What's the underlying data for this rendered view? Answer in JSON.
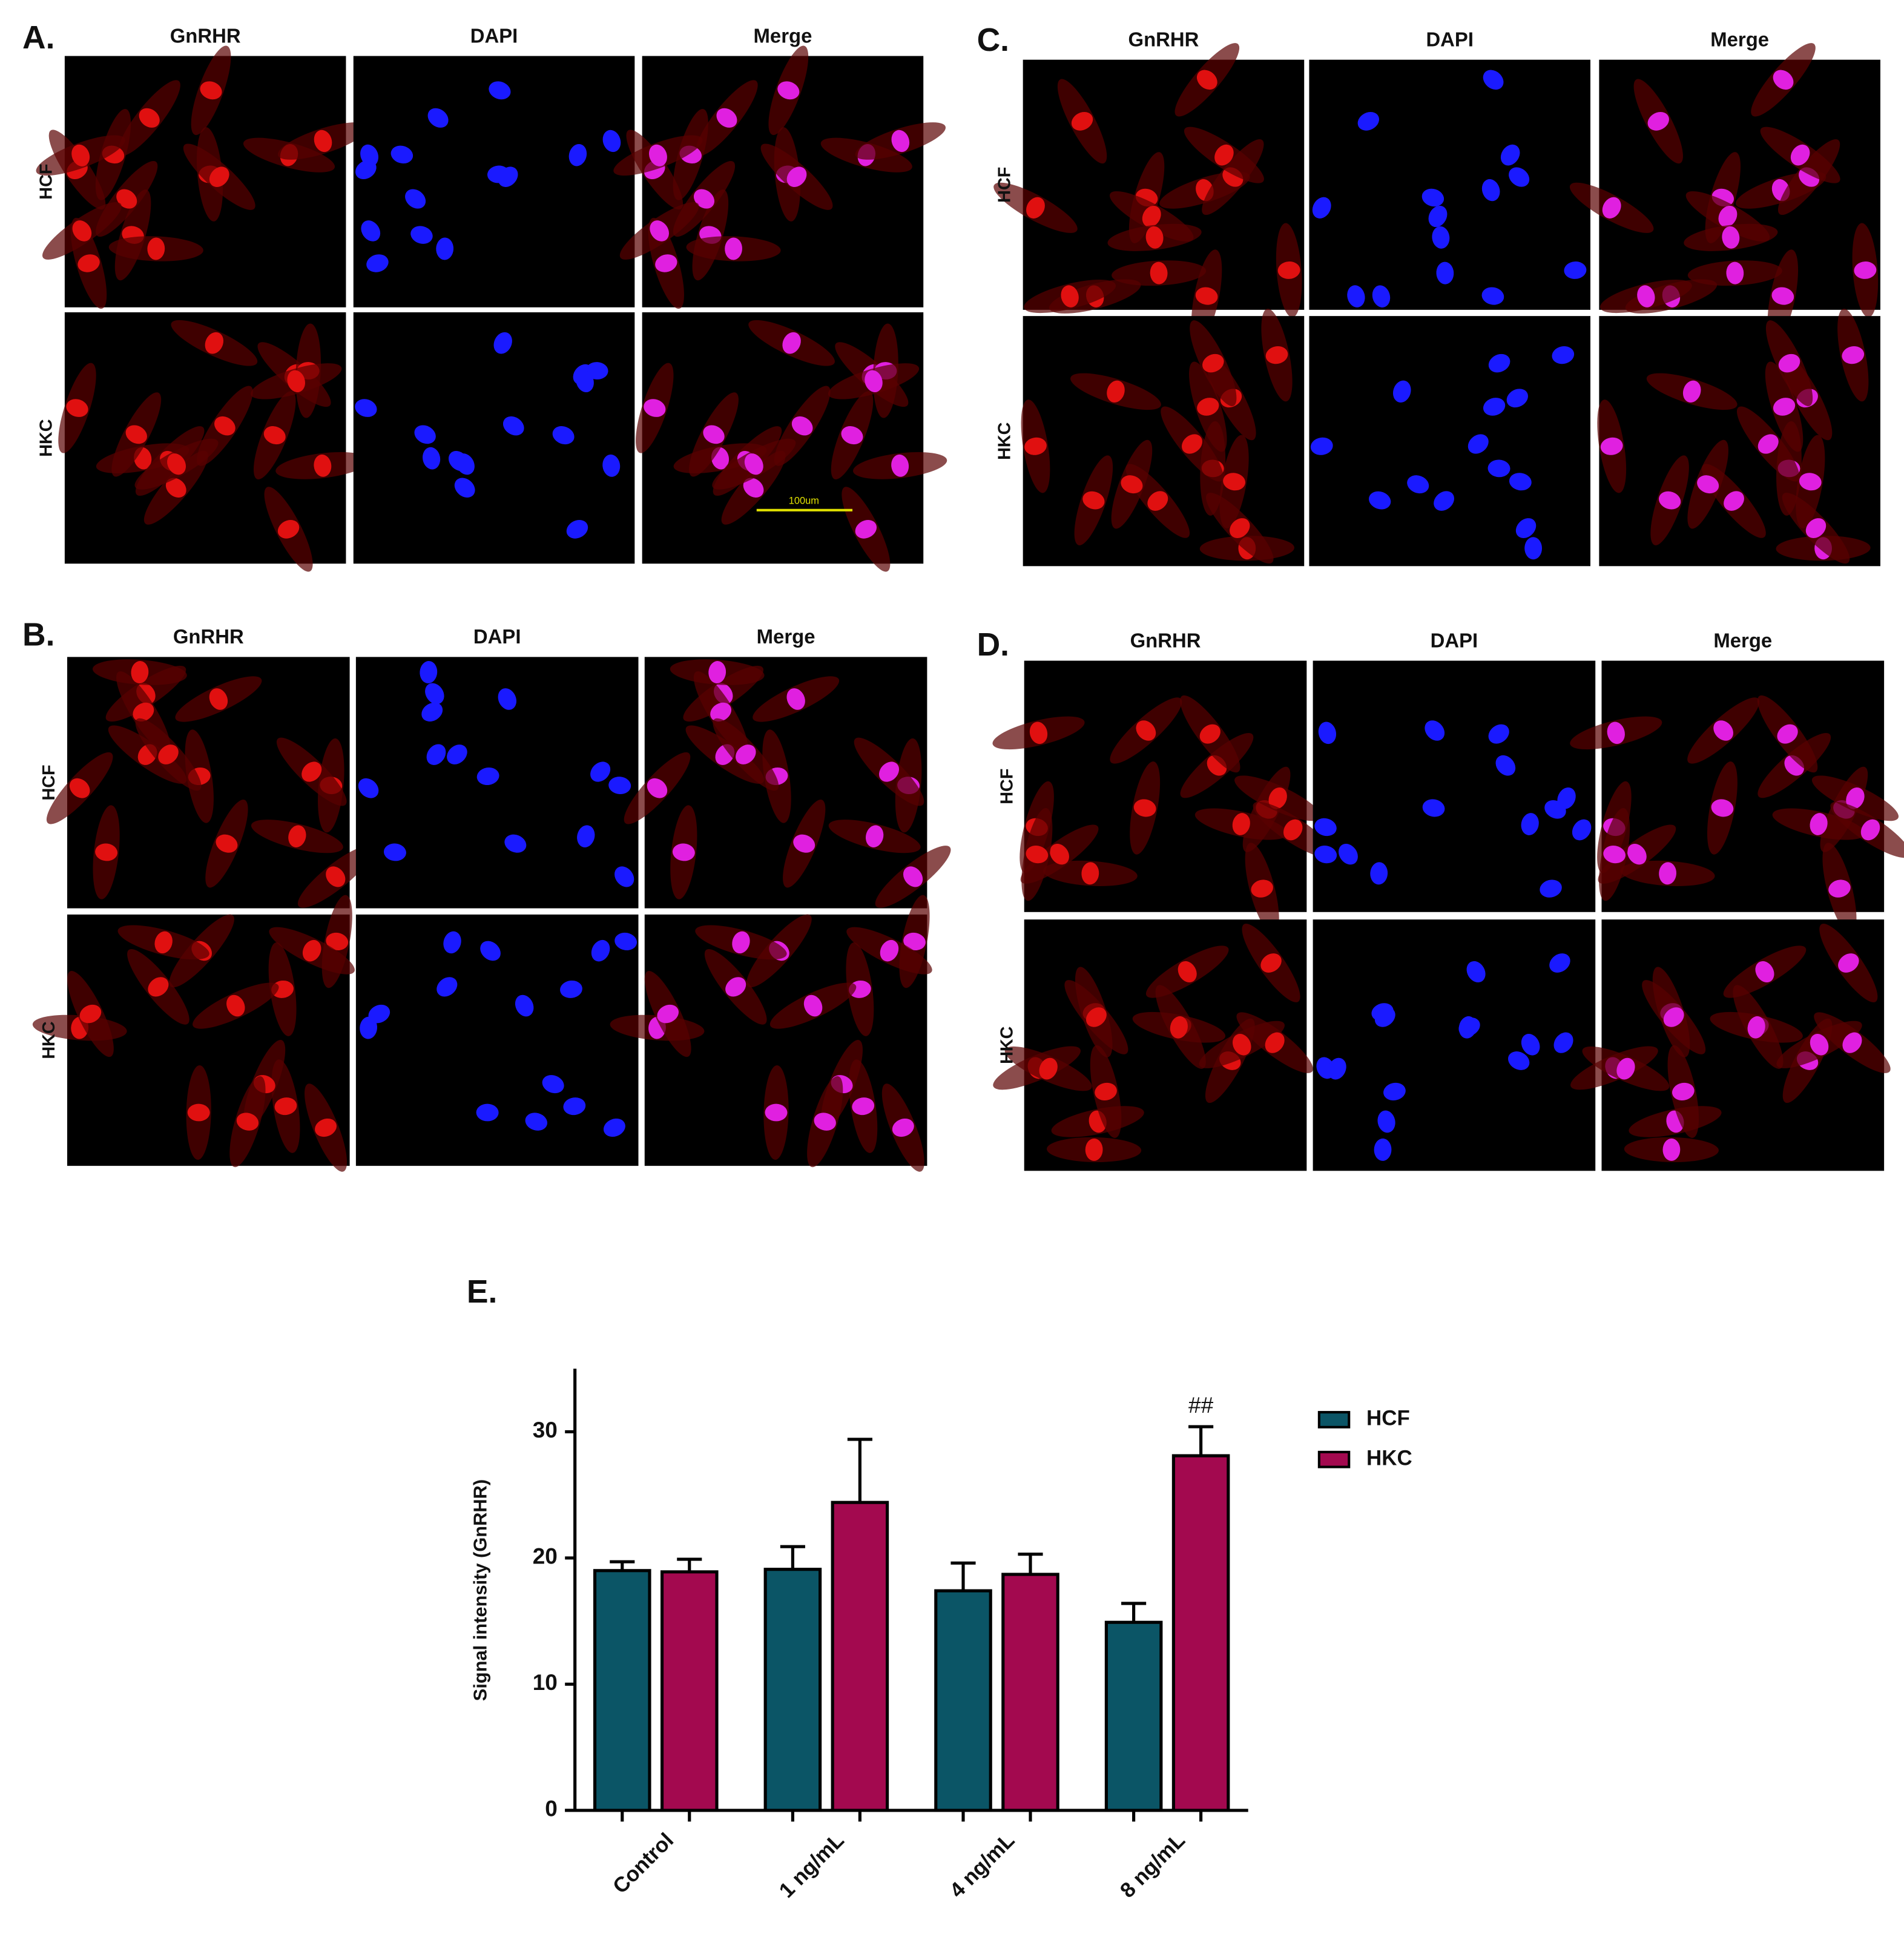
{
  "panels": [
    {
      "label": "A.",
      "columns": [
        "GnRHR",
        "DAPI",
        "Merge"
      ],
      "rows": [
        "HCF",
        "HKC"
      ],
      "scale_bar": "100um"
    },
    {
      "label": "B.",
      "columns": [
        "GnRHR",
        "DAPI",
        "Merge"
      ],
      "rows": [
        "HCF",
        "HKC"
      ]
    },
    {
      "label": "C.",
      "columns": [
        "GnRHR",
        "DAPI",
        "Merge"
      ],
      "rows": [
        "HCF",
        "HKC"
      ]
    },
    {
      "label": "D.",
      "columns": [
        "GnRHR",
        "DAPI",
        "Merge"
      ],
      "rows": [
        "HCF",
        "HKC"
      ]
    }
  ],
  "chart_data": {
    "type": "bar",
    "panel_label": "E.",
    "y_label": "Signal intensity (GnRHR)",
    "categories": [
      "Control",
      "1 ng/mL",
      "4 ng/mL",
      "8 ng/mL"
    ],
    "series": [
      {
        "name": "HCF",
        "color": "#0b5566",
        "values": [
          19,
          19.1,
          17.4,
          14.9
        ],
        "errors": [
          0.7,
          1.8,
          2.2,
          1.5
        ]
      },
      {
        "name": "HKC",
        "color": "#a3094f",
        "values": [
          18.9,
          24.4,
          18.7,
          28.1
        ],
        "errors": [
          1,
          5,
          1.6,
          2.3
        ]
      }
    ],
    "ylim": [
      0,
      35
    ],
    "yticks": [
      0,
      10,
      20,
      30
    ],
    "annotation": "##"
  }
}
